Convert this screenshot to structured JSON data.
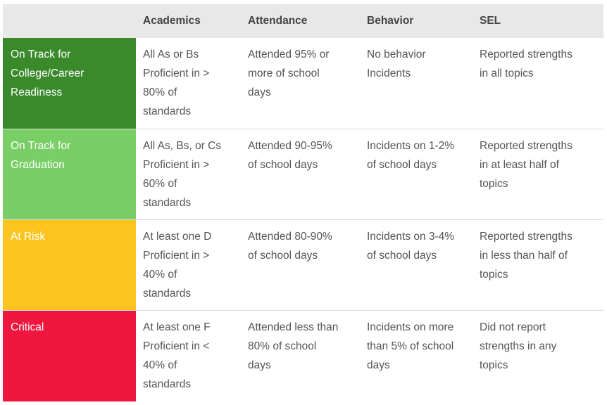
{
  "colors": {
    "header_bg": "#e8e8e8",
    "college_career": "#3a8a2b",
    "graduation": "#79cf66",
    "at_risk": "#fdc41f",
    "critical": "#ef173f"
  },
  "header": {
    "blank": "",
    "academics": "Academics",
    "attendance": "Attendance",
    "behavior": "Behavior",
    "sel": "SEL"
  },
  "rows": [
    {
      "label": "On Track for\nCollege/Career\nReadiness",
      "academics": "All As or Bs\nProficient in >\n80% of\nstandards",
      "attendance": "Attended 95% or\nmore of school\ndays",
      "behavior": "No behavior\nIncidents",
      "sel": "Reported strengths\nin all topics"
    },
    {
      "label": "On Track for\nGraduation",
      "academics": "All As, Bs, or Cs\nProficient in >\n60% of\nstandards",
      "attendance": "Attended 90-95%\nof school days",
      "behavior": "Incidents on 1-2%\nof school days",
      "sel": "Reported strengths\nin at least half of\ntopics"
    },
    {
      "label": "At Risk",
      "academics": "At least one D\nProficient in >\n40% of\nstandards",
      "attendance": "Attended 80-90%\nof school days",
      "behavior": "Incidents on 3-4%\nof school days",
      "sel": "Reported strengths\nin less than half of\ntopics"
    },
    {
      "label": "Critical",
      "academics": "At least one F\nProficient in <\n40% of\nstandards",
      "attendance": "Attended less than\n80% of school\ndays",
      "behavior": "Incidents on more\nthan 5% of school\ndays",
      "sel": "Did not report\nstrengths in any\ntopics"
    }
  ]
}
